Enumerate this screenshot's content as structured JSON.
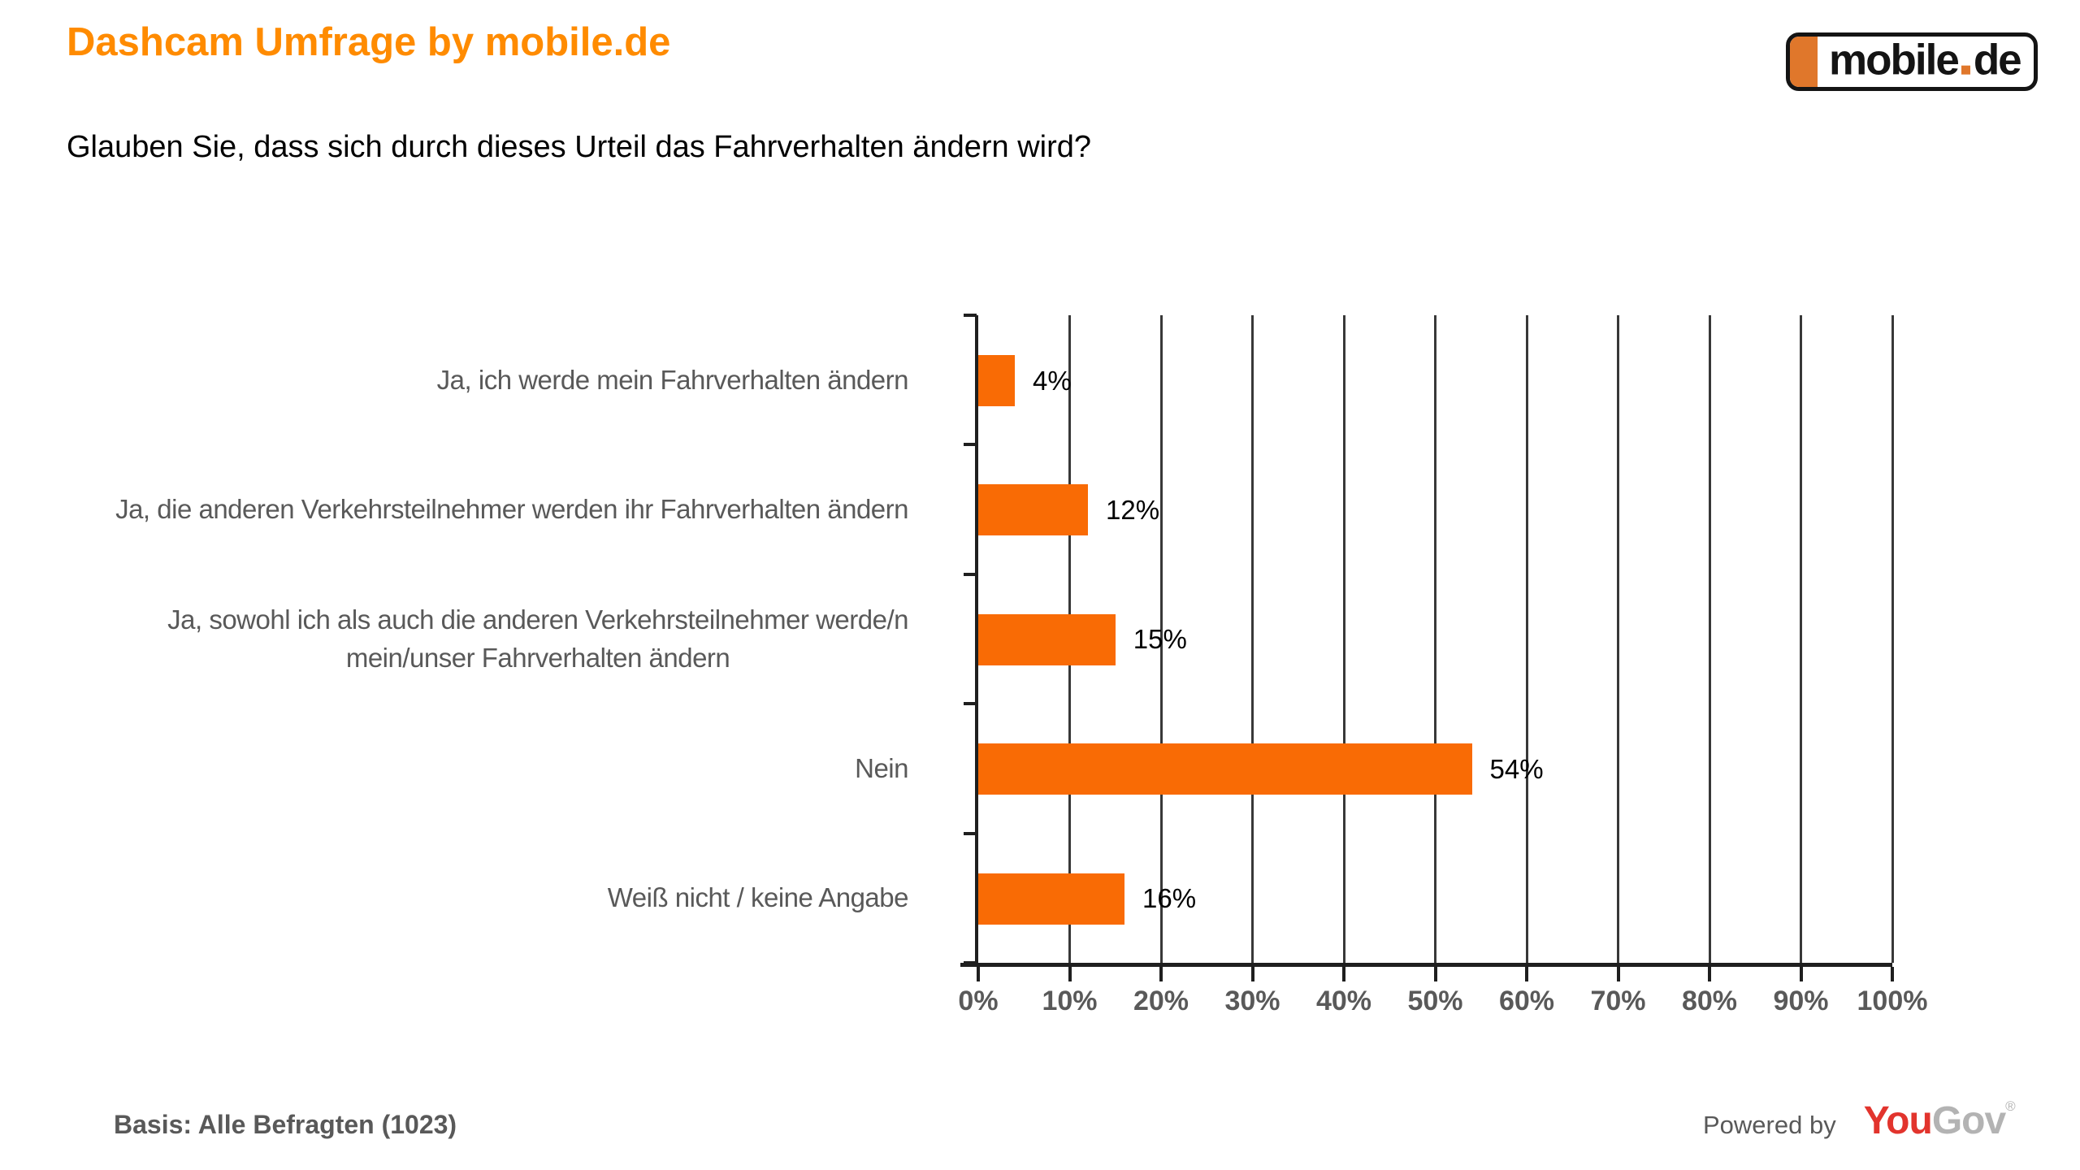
{
  "header": {
    "title": "Dashcam Umfrage by mobile.de",
    "question": "Glauben Sie, dass sich durch dieses Urteil das Fahrverhalten ändern wird?",
    "logo": {
      "word": "mobile",
      "tld": "de"
    }
  },
  "chart_data": {
    "type": "bar",
    "orientation": "horizontal",
    "categories": [
      "Ja, ich werde mein Fahrverhalten ändern",
      "Ja, die anderen Verkehrsteilnehmer werden ihr Fahrverhalten ändern",
      "Ja, sowohl ich als auch die anderen Verkehrsteilnehmer werde/n\nmein/unser Fahrverhalten ändern",
      "Nein",
      "Weiß nicht / keine Angabe"
    ],
    "values": [
      4,
      12,
      15,
      54,
      16
    ],
    "value_labels": [
      "4%",
      "12%",
      "15%",
      "54%",
      "16%"
    ],
    "x_ticks": [
      "0%",
      "10%",
      "20%",
      "30%",
      "40%",
      "50%",
      "60%",
      "70%",
      "80%",
      "90%",
      "100%"
    ],
    "xlim": [
      0,
      100
    ],
    "xlabel": "",
    "ylabel": "",
    "grid": true,
    "legend": false,
    "bar_color": "#F96B05",
    "title": "Dashcam Umfrage by mobile.de"
  },
  "footer": {
    "basis": "Basis: Alle Befragten (1023)",
    "powered_by": "Powered by",
    "brand_you": "You",
    "brand_gov": "Gov",
    "registered": "®"
  },
  "colors": {
    "title_orange": "#FF8B00",
    "bar_orange": "#F96B05",
    "logo_orange": "#E0772B",
    "axis_black": "#1F1F1F",
    "grid_gray": "#383838",
    "label_gray": "#595959",
    "yougov_red": "#E2342D",
    "yougov_gray": "#B3B3B3"
  }
}
